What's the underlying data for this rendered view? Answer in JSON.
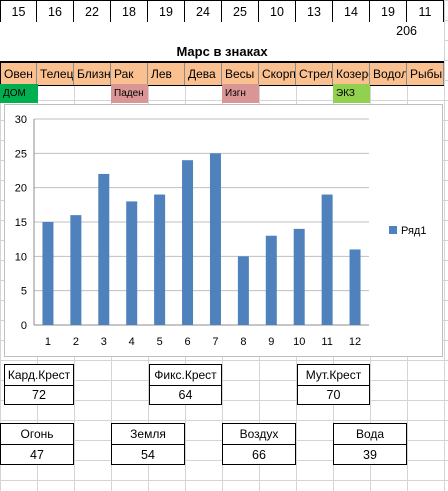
{
  "header_numbers": [
    "15",
    "16",
    "22",
    "18",
    "19",
    "24",
    "25",
    "10",
    "13",
    "14",
    "19",
    "11"
  ],
  "total": "206",
  "title": "Марс в знаках",
  "signs": [
    "Овен",
    "Телец",
    "Близнецы",
    "Рак",
    "Лев",
    "Дева",
    "Весы",
    "Скорпион",
    "Стрелец",
    "Козерог",
    "Водолей",
    "Рыбы"
  ],
  "status": [
    {
      "label": "ДОМ",
      "color": "#00b050"
    },
    {
      "label": "Паден",
      "color": "#da9694"
    },
    {
      "label": "Изгн",
      "color": "#da9694"
    },
    {
      "label": "ЭКЗ",
      "color": "#92d050"
    }
  ],
  "chart_data": {
    "type": "bar",
    "categories": [
      "1",
      "2",
      "3",
      "4",
      "5",
      "6",
      "7",
      "8",
      "9",
      "10",
      "11",
      "12"
    ],
    "series": [
      {
        "name": "Ряд1",
        "values": [
          15,
          16,
          22,
          18,
          19,
          24,
          25,
          10,
          13,
          14,
          19,
          11
        ],
        "color": "#4f81bd"
      }
    ],
    "ylim": [
      0,
      30
    ],
    "yticks": [
      "0",
      "5",
      "10",
      "15",
      "20",
      "25",
      "30"
    ],
    "grid": true,
    "legend_position": "right",
    "title": "",
    "xlabel": "",
    "ylabel": ""
  },
  "crosses": [
    {
      "label": "Кард.Крест",
      "value": "72"
    },
    {
      "label": "Фикс.Крест",
      "value": "64"
    },
    {
      "label": "Мут.Крест",
      "value": "70"
    }
  ],
  "elements": [
    {
      "label": "Огонь",
      "value": "47"
    },
    {
      "label": "Земля",
      "value": "54"
    },
    {
      "label": "Воздух",
      "value": "66"
    },
    {
      "label": "Вода",
      "value": "39"
    }
  ]
}
